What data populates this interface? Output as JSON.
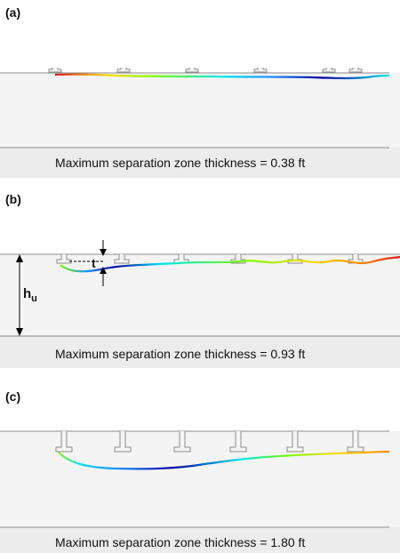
{
  "panels": [
    {
      "label": "(a)",
      "caption": "Maximum separation zone thickness = 0.38 ft"
    },
    {
      "label": "(b)",
      "caption": "Maximum separation zone thickness = 0.93 ft",
      "annotations": {
        "thickness_symbol": "t",
        "depth_symbol": "h",
        "depth_subscript": "u"
      }
    },
    {
      "label": "(c)",
      "caption": "Maximum separation zone thickness = 1.80 ft"
    }
  ],
  "colors": {
    "channel_bg": "#f2f2f2",
    "channel_line": "#8c8c8c",
    "colormap": [
      "#0000a0",
      "#1e90ff",
      "#00e5ee",
      "#7cfc00",
      "#ffd700",
      "#ff8c00",
      "#d7191c"
    ]
  }
}
